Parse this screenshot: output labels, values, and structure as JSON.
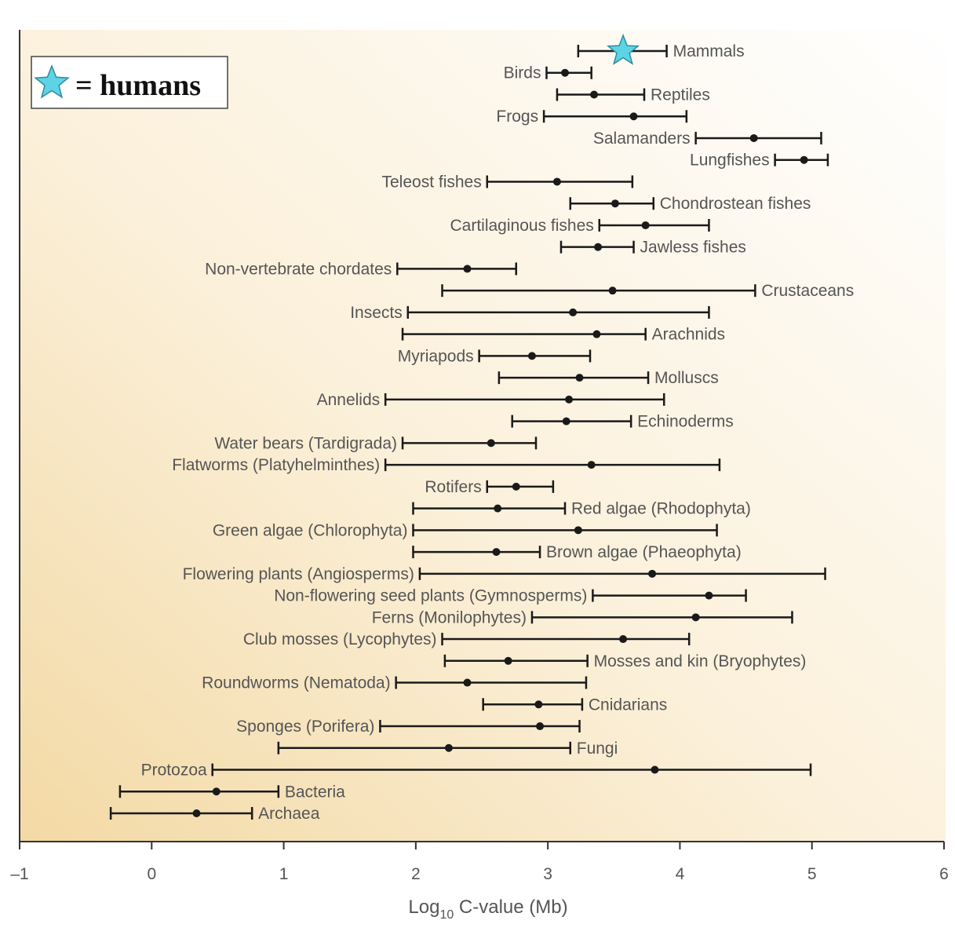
{
  "chart_data": {
    "type": "errorbar",
    "title": "",
    "xlabel_base": "Log",
    "xlabel_sub": "10",
    "xlabel_rest": " C-value (Mb)",
    "xlim": [
      -1,
      6
    ],
    "xticks": [
      "–1",
      "0",
      "1",
      "2",
      "3",
      "4",
      "5",
      "6"
    ],
    "grid": false,
    "legend": {
      "text": "= humans",
      "marker": "star",
      "placement": "top-left"
    },
    "colors": {
      "bars": "#1a1a1a",
      "star": "#5fd3e6",
      "background_warm": "#f3d9a4",
      "text": "#555555"
    },
    "rows": [
      {
        "label": "Mammals",
        "min": 3.23,
        "mean": 3.57,
        "max": 3.9,
        "side": "right",
        "marker": "star"
      },
      {
        "label": "Birds",
        "min": 2.99,
        "mean": 3.13,
        "max": 3.33,
        "side": "left"
      },
      {
        "label": "Reptiles",
        "min": 3.07,
        "mean": 3.35,
        "max": 3.73,
        "side": "right"
      },
      {
        "label": "Frogs",
        "min": 2.97,
        "mean": 3.65,
        "max": 4.05,
        "side": "left"
      },
      {
        "label": "Salamanders",
        "min": 4.12,
        "mean": 4.56,
        "max": 5.07,
        "side": "left"
      },
      {
        "label": "Lungfishes",
        "min": 4.72,
        "mean": 4.94,
        "max": 5.12,
        "side": "left"
      },
      {
        "label": "Teleost fishes",
        "min": 2.54,
        "mean": 3.07,
        "max": 3.64,
        "side": "left"
      },
      {
        "label": "Chondrostean fishes",
        "min": 3.17,
        "mean": 3.51,
        "max": 3.8,
        "side": "right"
      },
      {
        "label": "Cartilaginous fishes",
        "min": 3.39,
        "mean": 3.74,
        "max": 4.22,
        "side": "left"
      },
      {
        "label": "Jawless fishes",
        "min": 3.1,
        "mean": 3.38,
        "max": 3.65,
        "side": "right"
      },
      {
        "label": "Non-vertebrate chordates",
        "min": 1.86,
        "mean": 2.39,
        "max": 2.76,
        "side": "left"
      },
      {
        "label": "Crustaceans",
        "min": 2.2,
        "mean": 3.49,
        "max": 4.57,
        "side": "right"
      },
      {
        "label": "Insects",
        "min": 1.94,
        "mean": 3.19,
        "max": 4.22,
        "side": "left"
      },
      {
        "label": "Arachnids",
        "min": 1.9,
        "mean": 3.37,
        "max": 3.74,
        "side": "right"
      },
      {
        "label": "Myriapods",
        "min": 2.48,
        "mean": 2.88,
        "max": 3.32,
        "side": "left"
      },
      {
        "label": "Molluscs",
        "min": 2.63,
        "mean": 3.24,
        "max": 3.76,
        "side": "right"
      },
      {
        "label": "Annelids",
        "min": 1.77,
        "mean": 3.16,
        "max": 3.88,
        "side": "left"
      },
      {
        "label": "Echinoderms",
        "min": 2.73,
        "mean": 3.14,
        "max": 3.63,
        "side": "right"
      },
      {
        "label": "Water bears (Tardigrada)",
        "min": 1.9,
        "mean": 2.57,
        "max": 2.91,
        "side": "left"
      },
      {
        "label": "Flatworms (Platyhelminthes)",
        "min": 1.77,
        "mean": 3.33,
        "max": 4.3,
        "side": "left"
      },
      {
        "label": "Rotifers",
        "min": 2.54,
        "mean": 2.76,
        "max": 3.04,
        "side": "left"
      },
      {
        "label": "Red algae (Rhodophyta)",
        "min": 1.98,
        "mean": 2.62,
        "max": 3.13,
        "side": "right"
      },
      {
        "label": "Green algae (Chlorophyta)",
        "min": 1.98,
        "mean": 3.23,
        "max": 4.28,
        "side": "left"
      },
      {
        "label": "Brown algae (Phaeophyta)",
        "min": 1.98,
        "mean": 2.61,
        "max": 2.94,
        "side": "right"
      },
      {
        "label": "Flowering plants (Angiosperms)",
        "min": 2.03,
        "mean": 3.79,
        "max": 5.1,
        "side": "left"
      },
      {
        "label": "Non-flowering seed plants (Gymnosperms)",
        "min": 3.34,
        "mean": 4.22,
        "max": 4.5,
        "side": "left"
      },
      {
        "label": "Ferns (Monilophytes)",
        "min": 2.88,
        "mean": 4.12,
        "max": 4.85,
        "side": "left"
      },
      {
        "label": "Club mosses (Lycophytes)",
        "min": 2.2,
        "mean": 3.57,
        "max": 4.07,
        "side": "left"
      },
      {
        "label": "Mosses and kin (Bryophytes)",
        "min": 2.22,
        "mean": 2.7,
        "max": 3.3,
        "side": "right"
      },
      {
        "label": "Roundworms (Nematoda)",
        "min": 1.85,
        "mean": 2.39,
        "max": 3.29,
        "side": "left"
      },
      {
        "label": "Cnidarians",
        "min": 2.51,
        "mean": 2.93,
        "max": 3.26,
        "side": "right"
      },
      {
        "label": "Sponges (Porifera)",
        "min": 1.73,
        "mean": 2.94,
        "max": 3.24,
        "side": "left"
      },
      {
        "label": "Fungi",
        "min": 0.96,
        "mean": 2.25,
        "max": 3.17,
        "side": "right"
      },
      {
        "label": "Protozoa",
        "min": 0.46,
        "mean": 3.81,
        "max": 4.99,
        "side": "left"
      },
      {
        "label": "Bacteria",
        "min": -0.24,
        "mean": 0.49,
        "max": 0.96,
        "side": "right"
      },
      {
        "label": "Archaea",
        "min": -0.31,
        "mean": 0.34,
        "max": 0.76,
        "side": "right"
      }
    ]
  }
}
